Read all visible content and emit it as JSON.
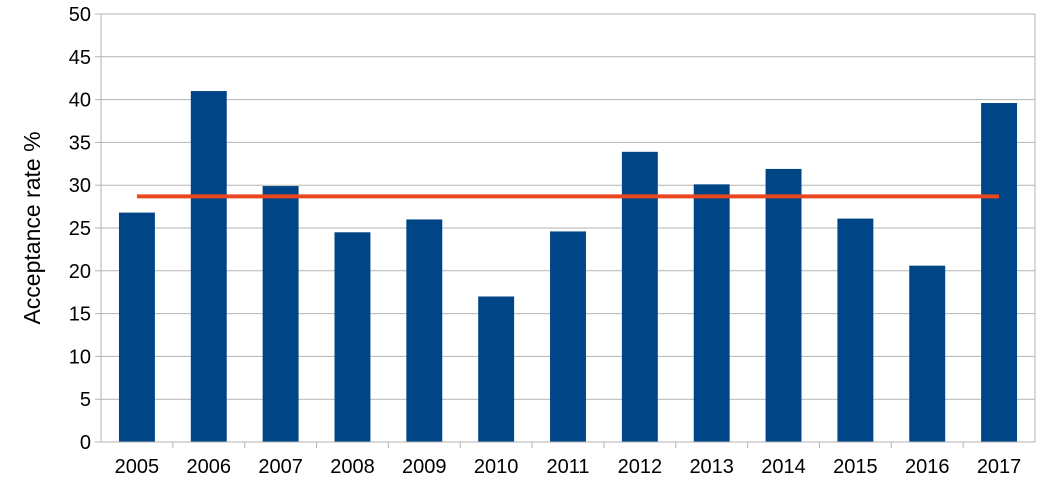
{
  "chart_data": {
    "type": "bar",
    "categories": [
      "2005",
      "2006",
      "2007",
      "2008",
      "2009",
      "2010",
      "2011",
      "2012",
      "2013",
      "2014",
      "2015",
      "2016",
      "2017"
    ],
    "values": [
      26.8,
      41.0,
      29.9,
      24.5,
      26.0,
      17.0,
      24.6,
      33.9,
      30.1,
      31.9,
      26.1,
      20.6,
      39.6
    ],
    "reference_line": {
      "value": 28.7,
      "color": "#e8471f"
    },
    "title": "",
    "xlabel": "",
    "ylabel": "Acceptance rate %",
    "ylim": [
      0,
      50
    ],
    "yticks": [
      0,
      5,
      10,
      15,
      20,
      25,
      30,
      35,
      40,
      45,
      50
    ],
    "grid": true,
    "legend": "none",
    "colors": {
      "bar": "#004586",
      "grid": "#b3b3b3",
      "axis": "#b3b3b3"
    }
  }
}
